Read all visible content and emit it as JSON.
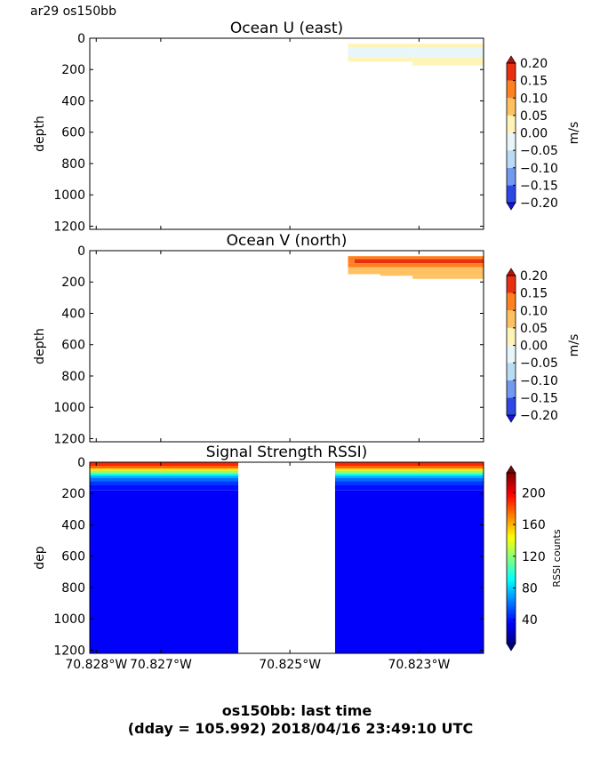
{
  "figure": {
    "suptitle": "ar29 os150bb",
    "footer_line1": "os150bb: last time",
    "footer_line2": "(dday = 105.992) 2018/04/16 23:49:10 UTC"
  },
  "chart_data": [
    {
      "type": "heatmap",
      "title": "Ocean U (east)",
      "ylabel": "depth",
      "ylim": [
        1220,
        0
      ],
      "yticks": [
        "0",
        "200",
        "400",
        "600",
        "800",
        "1000",
        "1200"
      ],
      "colorbar": {
        "label": "m/s",
        "ticks": [
          "0.20",
          "0.15",
          "0.10",
          "0.05",
          "0.00",
          "−0.05",
          "−0.10",
          "−0.15",
          "−0.20"
        ],
        "levels": [
          -0.2,
          -0.15,
          -0.1,
          -0.05,
          0.0,
          0.05,
          0.1,
          0.15,
          0.2
        ],
        "colors": [
          "#1a10d8",
          "#2e48e8",
          "#6f9af0",
          "#b9dcf4",
          "#e8f6fa",
          "#fff4b8",
          "#ffc060",
          "#ff8020",
          "#e83010",
          "#b81008"
        ]
      },
      "cells": [
        {
          "lon": [
            -70.8241,
            -70.8231
          ],
          "depth": [
            35,
            60
          ],
          "value": 0.02
        },
        {
          "lon": [
            -70.8231,
            -70.822
          ],
          "depth": [
            35,
            60
          ],
          "value": 0.02
        },
        {
          "lon": [
            -70.8241,
            -70.8231
          ],
          "depth": [
            60,
            120
          ],
          "value": -0.02
        },
        {
          "lon": [
            -70.8231,
            -70.822
          ],
          "depth": [
            60,
            120
          ],
          "value": -0.02
        },
        {
          "lon": [
            -70.8241,
            -70.8231
          ],
          "depth": [
            120,
            150
          ],
          "value": 0.02
        },
        {
          "lon": [
            -70.8231,
            -70.822
          ],
          "depth": [
            120,
            175
          ],
          "value": 0.02
        }
      ]
    },
    {
      "type": "heatmap",
      "title": "Ocean V (north)",
      "ylabel": "depth",
      "ylim": [
        1220,
        0
      ],
      "yticks": [
        "0",
        "200",
        "400",
        "600",
        "800",
        "1000",
        "1200"
      ],
      "colorbar": {
        "label": "m/s",
        "ticks": [
          "0.20",
          "0.15",
          "0.10",
          "0.05",
          "0.00",
          "−0.05",
          "−0.10",
          "−0.15",
          "−0.20"
        ],
        "levels": [
          -0.2,
          -0.15,
          -0.1,
          -0.05,
          0.0,
          0.05,
          0.1,
          0.15,
          0.2
        ],
        "colors": [
          "#1a10d8",
          "#2e48e8",
          "#6f9af0",
          "#b9dcf4",
          "#e8f6fa",
          "#fff4b8",
          "#ffc060",
          "#ff8020",
          "#e83010",
          "#b81008"
        ]
      },
      "cells": [
        {
          "lon": [
            -70.8241,
            -70.822
          ],
          "depth": [
            35,
            60
          ],
          "value": 0.12
        },
        {
          "lon": [
            -70.824,
            -70.822
          ],
          "depth": [
            55,
            80
          ],
          "value": 0.17
        },
        {
          "lon": [
            -70.8241,
            -70.824
          ],
          "depth": [
            55,
            80
          ],
          "value": 0.12
        },
        {
          "lon": [
            -70.8241,
            -70.822
          ],
          "depth": [
            80,
            105
          ],
          "value": 0.12
        },
        {
          "lon": [
            -70.8241,
            -70.822
          ],
          "depth": [
            105,
            130
          ],
          "value": 0.07
        },
        {
          "lon": [
            -70.8241,
            -70.822
          ],
          "depth": [
            130,
            150
          ],
          "value": 0.07
        },
        {
          "lon": [
            -70.8236,
            -70.822
          ],
          "depth": [
            150,
            160
          ],
          "value": 0.07
        },
        {
          "lon": [
            -70.8231,
            -70.822
          ],
          "depth": [
            160,
            180
          ],
          "value": 0.07
        }
      ]
    },
    {
      "type": "heatmap",
      "title": "Signal Strength RSSI)",
      "ylabel": "dep",
      "ylim": [
        1220,
        0
      ],
      "yticks": [
        "0",
        "200",
        "400",
        "600",
        "800",
        "1000",
        "1200"
      ],
      "xlim": [
        -70.8281,
        -70.822
      ],
      "xticks": [
        {
          "lon": -70.828,
          "label": "70.828°W"
        },
        {
          "lon": -70.827,
          "label": "70.827°W"
        },
        {
          "lon": -70.825,
          "label": "70.825°W"
        },
        {
          "lon": -70.823,
          "label": "70.823°W"
        }
      ],
      "colorbar": {
        "label": "RSSI counts",
        "ticks": [
          "200",
          "160",
          "120",
          "80",
          "40"
        ],
        "range": [
          10,
          225
        ]
      },
      "segments": [
        {
          "lon": [
            -70.8281,
            -70.8258
          ]
        },
        {
          "lon": [
            -70.8243,
            -70.822
          ]
        }
      ],
      "profile": [
        {
          "depth": 25,
          "value": 190
        },
        {
          "depth": 40,
          "value": 175
        },
        {
          "depth": 55,
          "value": 150
        },
        {
          "depth": 70,
          "value": 120
        },
        {
          "depth": 85,
          "value": 95
        },
        {
          "depth": 100,
          "value": 75
        },
        {
          "depth": 120,
          "value": 60
        },
        {
          "depth": 145,
          "value": 48
        },
        {
          "depth": 180,
          "value": 40
        },
        {
          "depth": 1220,
          "value": 36
        }
      ]
    }
  ]
}
